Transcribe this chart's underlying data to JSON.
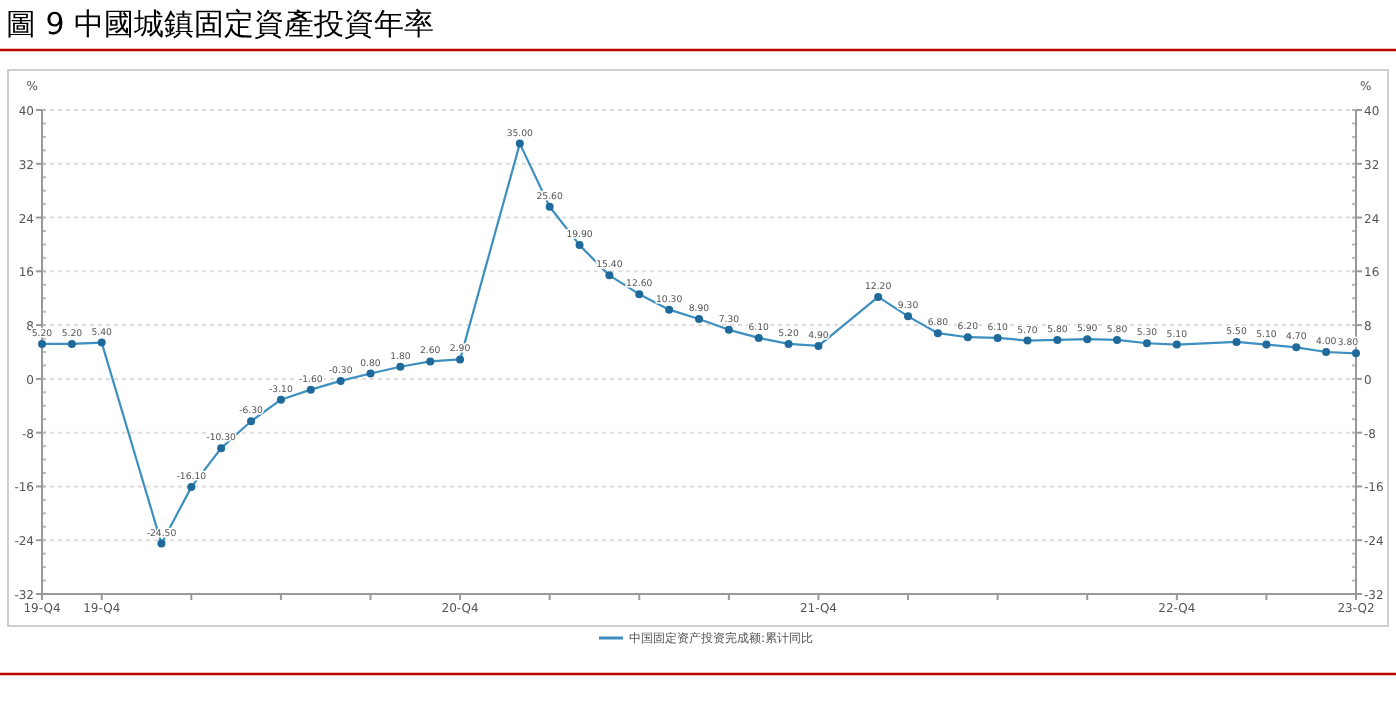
{
  "chart_data": {
    "type": "line",
    "title": "圖 9 中國城鎮固定資產投資年率",
    "categories": [
      "19-Q4",
      null,
      "19-Q4",
      null,
      null,
      null,
      null,
      null,
      null,
      null,
      null,
      null,
      null,
      null,
      "20-Q4",
      null,
      null,
      null,
      null,
      null,
      null,
      null,
      null,
      null,
      null,
      null,
      "21-Q4",
      null,
      null,
      null,
      null,
      null,
      null,
      null,
      null,
      null,
      null,
      null,
      "22-Q4",
      null,
      null,
      null,
      null,
      null,
      "23-Q2"
    ],
    "series": [
      {
        "name": "中国固定资产投资完成额:累计同比",
        "color": "#3d8fbf",
        "values": [
          5.2,
          5.2,
          5.4,
          null,
          -24.5,
          -16.1,
          -10.3,
          -6.3,
          -3.1,
          -1.6,
          -0.3,
          0.8,
          1.8,
          2.6,
          2.9,
          null,
          35.0,
          25.6,
          19.9,
          15.4,
          12.6,
          10.3,
          8.9,
          7.3,
          6.1,
          5.2,
          4.9,
          null,
          12.2,
          9.3,
          6.8,
          6.2,
          6.1,
          5.7,
          5.8,
          5.9,
          5.8,
          5.3,
          5.1,
          null,
          5.5,
          5.1,
          4.7,
          4.0,
          3.8
        ],
        "value_labels": [
          "5.20",
          "5.20",
          "5.40",
          null,
          "-24.50",
          "-16.10",
          "-10.30",
          "-6.30",
          "-3.10",
          "-1.60",
          "-0.30",
          "0.80",
          "1.80",
          "2.60",
          "2.90",
          null,
          "35.00",
          "25.60",
          "19.90",
          "15.40",
          "12.60",
          "10.30",
          "8.90",
          "7.30",
          "6.10",
          "5.20",
          "4.90",
          null,
          "12.20",
          "9.30",
          "6.80",
          "6.20",
          "6.10",
          "5.70",
          "5.80",
          "5.90",
          "5.80",
          "5.30",
          "5.10",
          null,
          "5.50",
          "5.10",
          "4.70",
          "4.00",
          "3.80"
        ]
      }
    ],
    "ylabel": "%",
    "y2label": "%",
    "ylim": [
      -32,
      40
    ],
    "yticks": [
      -32,
      -24,
      -16,
      -8,
      0,
      8,
      16,
      24,
      32,
      40
    ],
    "y2lim": [
      -32,
      40
    ],
    "y2ticks": [
      -32,
      -24,
      -16,
      -8,
      0,
      8,
      16,
      24,
      32,
      40
    ],
    "grid": "y",
    "legend": "bottom",
    "marker": "circle",
    "line_style": "solid"
  }
}
